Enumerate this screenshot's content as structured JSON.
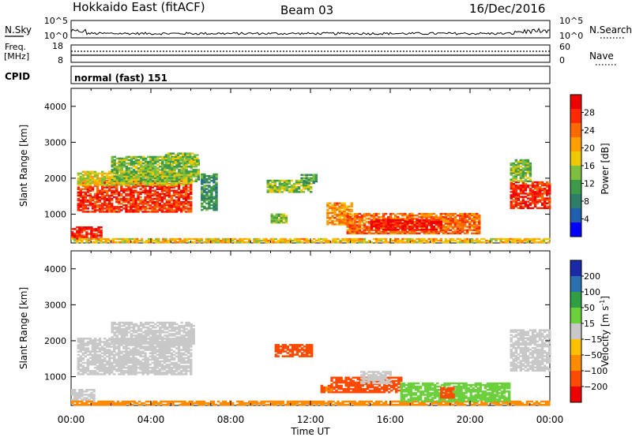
{
  "header": {
    "title": "Hokkaido East (fitACF)",
    "beam": "Beam 03",
    "date": "16/Dec/2016"
  },
  "top_panels": {
    "nsky_label": "N.Sky",
    "nsky_ticks": [
      "10^5",
      "10^0"
    ],
    "nsearch_ticks": [
      "10^5",
      "10^0"
    ],
    "nsearch_label": "N.Search",
    "freq_label": "Freq.",
    "freq_unit": "[MHz]",
    "freq_ticks": [
      "18",
      "8"
    ],
    "nave_ticks": [
      "60",
      "0"
    ],
    "nave_label": "Nave",
    "cpid_label": "CPID",
    "cpid_text": "normal (fast) 151"
  },
  "colors": {
    "power": [
      "#0000ff",
      "#1f5fb0",
      "#2e7d6a",
      "#3c9a48",
      "#7fbf3f",
      "#f0c800",
      "#ffa000",
      "#ff6a00",
      "#ff2a00",
      "#ee0000"
    ],
    "velocity": [
      "#ee0000",
      "#ff4a00",
      "#ff8c00",
      "#ffc000",
      "#c8c8c8",
      "#6ccf3c",
      "#2f9e44",
      "#2a6fae",
      "#1a2aa6"
    ]
  },
  "chart_data": [
    {
      "type": "heatmap",
      "quantity": "Power",
      "ylabel": "Slant Range [km]",
      "yticks": [
        "4000",
        "3000",
        "2000",
        "1000"
      ],
      "ylim": [
        200,
        4500
      ],
      "xlim": [
        "00:00",
        "24:00"
      ],
      "colorbar_label": "Power [dB]",
      "colorbar_ticks": [
        "28",
        "24",
        "20",
        "16",
        "12",
        "8",
        "4"
      ],
      "colorbar_range": [
        0,
        32
      ],
      "regions": [
        {
          "t0": 0.3,
          "t1": 6.0,
          "r0": 1050,
          "r1": 1950,
          "v": 27
        },
        {
          "t0": 0.3,
          "t1": 6.0,
          "r0": 1800,
          "r1": 2200,
          "v": 17
        },
        {
          "t0": 2.0,
          "t1": 6.4,
          "r0": 1900,
          "r1": 2600,
          "v": 14
        },
        {
          "t0": 6.5,
          "t1": 7.3,
          "r0": 1100,
          "r1": 2100,
          "v": 10
        },
        {
          "t0": 0.0,
          "t1": 1.5,
          "r0": 300,
          "r1": 650,
          "v": 28
        },
        {
          "t0": 0.0,
          "t1": 24.0,
          "r0": 200,
          "r1": 330,
          "v": 19
        },
        {
          "t0": 9.8,
          "t1": 12.0,
          "r0": 1600,
          "r1": 1950,
          "v": 14
        },
        {
          "t0": 11.5,
          "t1": 12.3,
          "r0": 1850,
          "r1": 2100,
          "v": 12
        },
        {
          "t0": 12.8,
          "t1": 14.0,
          "r0": 700,
          "r1": 1300,
          "v": 22
        },
        {
          "t0": 13.8,
          "t1": 20.5,
          "r0": 450,
          "r1": 1000,
          "v": 24
        },
        {
          "t0": 15.0,
          "t1": 18.5,
          "r0": 550,
          "r1": 850,
          "v": 30
        },
        {
          "t0": 10.0,
          "t1": 10.8,
          "r0": 750,
          "r1": 1000,
          "v": 14
        },
        {
          "t0": 22.0,
          "t1": 24.0,
          "r0": 1150,
          "r1": 1900,
          "v": 28
        },
        {
          "t0": 22.0,
          "t1": 23.0,
          "r0": 1900,
          "r1": 2500,
          "v": 14
        },
        {
          "t0": 4.7,
          "t1": 6.3,
          "r0": 2400,
          "r1": 2700,
          "v": 14
        }
      ]
    },
    {
      "type": "heatmap",
      "quantity": "Velocity",
      "ylabel": "Slant Range [km]",
      "yticks": [
        "4000",
        "3000",
        "2000",
        "1000"
      ],
      "ylim": [
        200,
        4500
      ],
      "xlim": [
        "00:00",
        "24:00"
      ],
      "xticks": [
        "00:00",
        "04:00",
        "08:00",
        "12:00",
        "16:00",
        "20:00",
        "00:00"
      ],
      "xlabel": "Time UT",
      "colorbar_label": "Velocity [m s",
      "colorbar_label_sup": "-1",
      "colorbar_label_end": "]",
      "colorbar_ticks": [
        "200",
        "100",
        "50",
        "15",
        "−15",
        "−50",
        "−100",
        "−200"
      ],
      "colorbar_values": [
        200,
        100,
        50,
        15,
        -15,
        -50,
        -100,
        -200
      ],
      "regions": [
        {
          "t0": 0.3,
          "t1": 6.0,
          "r0": 1050,
          "r1": 2050,
          "v": 0
        },
        {
          "t0": 2.0,
          "t1": 6.2,
          "r0": 1900,
          "r1": 2500,
          "v": 0
        },
        {
          "t0": 0.0,
          "t1": 1.2,
          "r0": 300,
          "r1": 650,
          "v": 0
        },
        {
          "t0": 0.0,
          "t1": 24.0,
          "r0": 200,
          "r1": 320,
          "v": -40
        },
        {
          "t0": 10.2,
          "t1": 12.0,
          "r0": 1550,
          "r1": 1900,
          "v": -70
        },
        {
          "t0": 13.0,
          "t1": 16.5,
          "r0": 550,
          "r1": 1000,
          "v": -80
        },
        {
          "t0": 14.5,
          "t1": 16.0,
          "r0": 800,
          "r1": 1150,
          "v": 0
        },
        {
          "t0": 16.5,
          "t1": 22.0,
          "r0": 300,
          "r1": 800,
          "v": 30
        },
        {
          "t0": 18.5,
          "t1": 19.2,
          "r0": 400,
          "r1": 700,
          "v": -60
        },
        {
          "t0": 22.0,
          "t1": 24.0,
          "r0": 1150,
          "r1": 2300,
          "v": 0
        },
        {
          "t0": 12.5,
          "t1": 13.0,
          "r0": 550,
          "r1": 750,
          "v": -50
        }
      ]
    }
  ]
}
